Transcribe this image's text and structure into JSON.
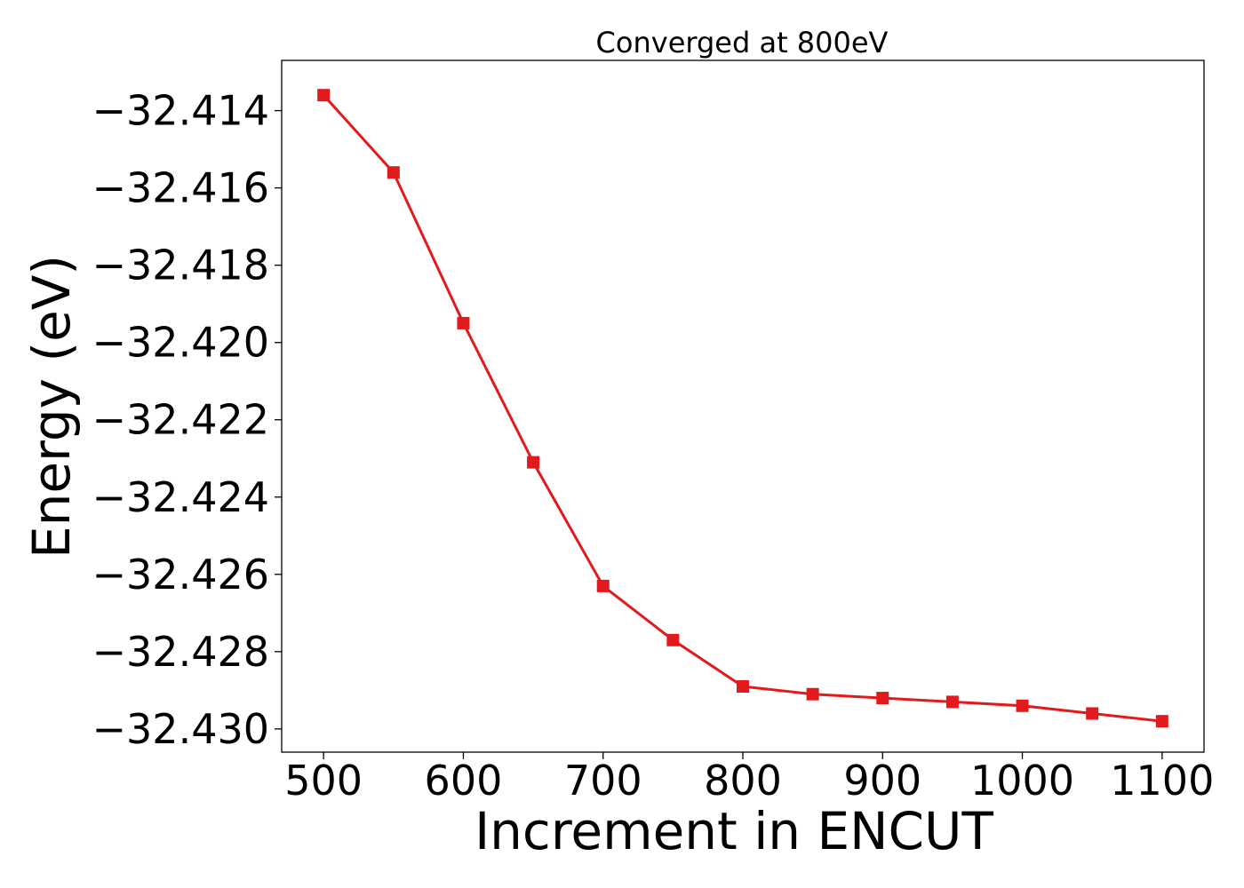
{
  "chart_data": {
    "type": "line",
    "title": "Converged at 800eV",
    "xlabel": "Increment in ENCUT",
    "ylabel": "Energy (eV)",
    "xlim": [
      470,
      1130
    ],
    "ylim": [
      -32.4306,
      -32.4127
    ],
    "x_ticks": [
      500,
      600,
      700,
      800,
      900,
      1000,
      1100
    ],
    "y_ticks": [
      -32.414,
      -32.416,
      -32.418,
      -32.42,
      -32.422,
      -32.424,
      -32.426,
      -32.428,
      -32.43
    ],
    "y_tick_labels": [
      "−32.414",
      "−32.416",
      "−32.418",
      "−32.420",
      "−32.422",
      "−32.424",
      "−32.426",
      "−32.428",
      "−32.430"
    ],
    "grid": false,
    "legend": "none",
    "series": [
      {
        "color": "#e31a1c",
        "marker": "square",
        "x": [
          500,
          550,
          600,
          650,
          700,
          750,
          800,
          850,
          900,
          950,
          1000,
          1050,
          1100
        ],
        "y": [
          -32.4136,
          -32.4156,
          -32.4195,
          -32.4231,
          -32.4263,
          -32.4277,
          -32.4289,
          -32.4291,
          -32.4292,
          -32.4293,
          -32.4294,
          -32.4296,
          -32.4298
        ]
      }
    ]
  }
}
